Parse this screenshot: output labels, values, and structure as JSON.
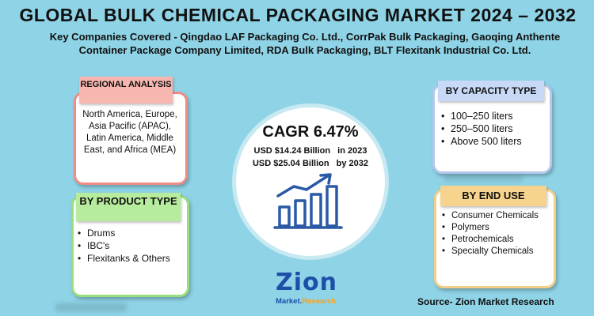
{
  "title": "GLOBAL BULK CHEMICAL PACKAGING MARKET 2024 – 2032",
  "subtitle": "Key Companies Covered - Qingdao LAF Packaging Co. Ltd., CorrPak Bulk Packaging, Gaoqing Anthente Container Package Company Limited, RDA Bulk Packaging, BLT Flexitank Industrial Co. Ltd.",
  "regional": {
    "label": "REGIONAL ANALYSIS",
    "text": "North America, Europe, Asia Pacific (APAC), Latin America, Middle East, and Africa (MEA)"
  },
  "product": {
    "label": "BY PRODUCT TYPE",
    "items": [
      "Drums",
      "IBC's",
      "Flexitanks & Others"
    ]
  },
  "capacity": {
    "label": "BY CAPACITY TYPE",
    "items": [
      "100–250 liters",
      "250–500 liters",
      "Above 500 liters"
    ]
  },
  "end_use": {
    "label": "BY END USE",
    "items": [
      "Consumer Chemicals",
      "Polymers",
      "Petrochemicals",
      "Specialty Chemicals"
    ]
  },
  "center": {
    "cagr": "CAGR 6.47%",
    "value_2023": "USD $14.24 Billion",
    "year_2023": "in 2023",
    "value_2032": "USD $25.04 Billion",
    "year_2032": "by 2032"
  },
  "logo": {
    "main": "Zion",
    "sub_1": "Market.",
    "sub_2": "Research"
  },
  "source": "Source- Zion Market Research",
  "icons": [
    "growth-chart-icon",
    "zion-logo"
  ],
  "colors": {
    "background": "#8fd3e6",
    "regional": "#f28b84",
    "product": "#9adf7d",
    "capacity": "#b6c8ec",
    "end_use": "#f3cf86",
    "icon_blue": "#2a5aa6"
  }
}
